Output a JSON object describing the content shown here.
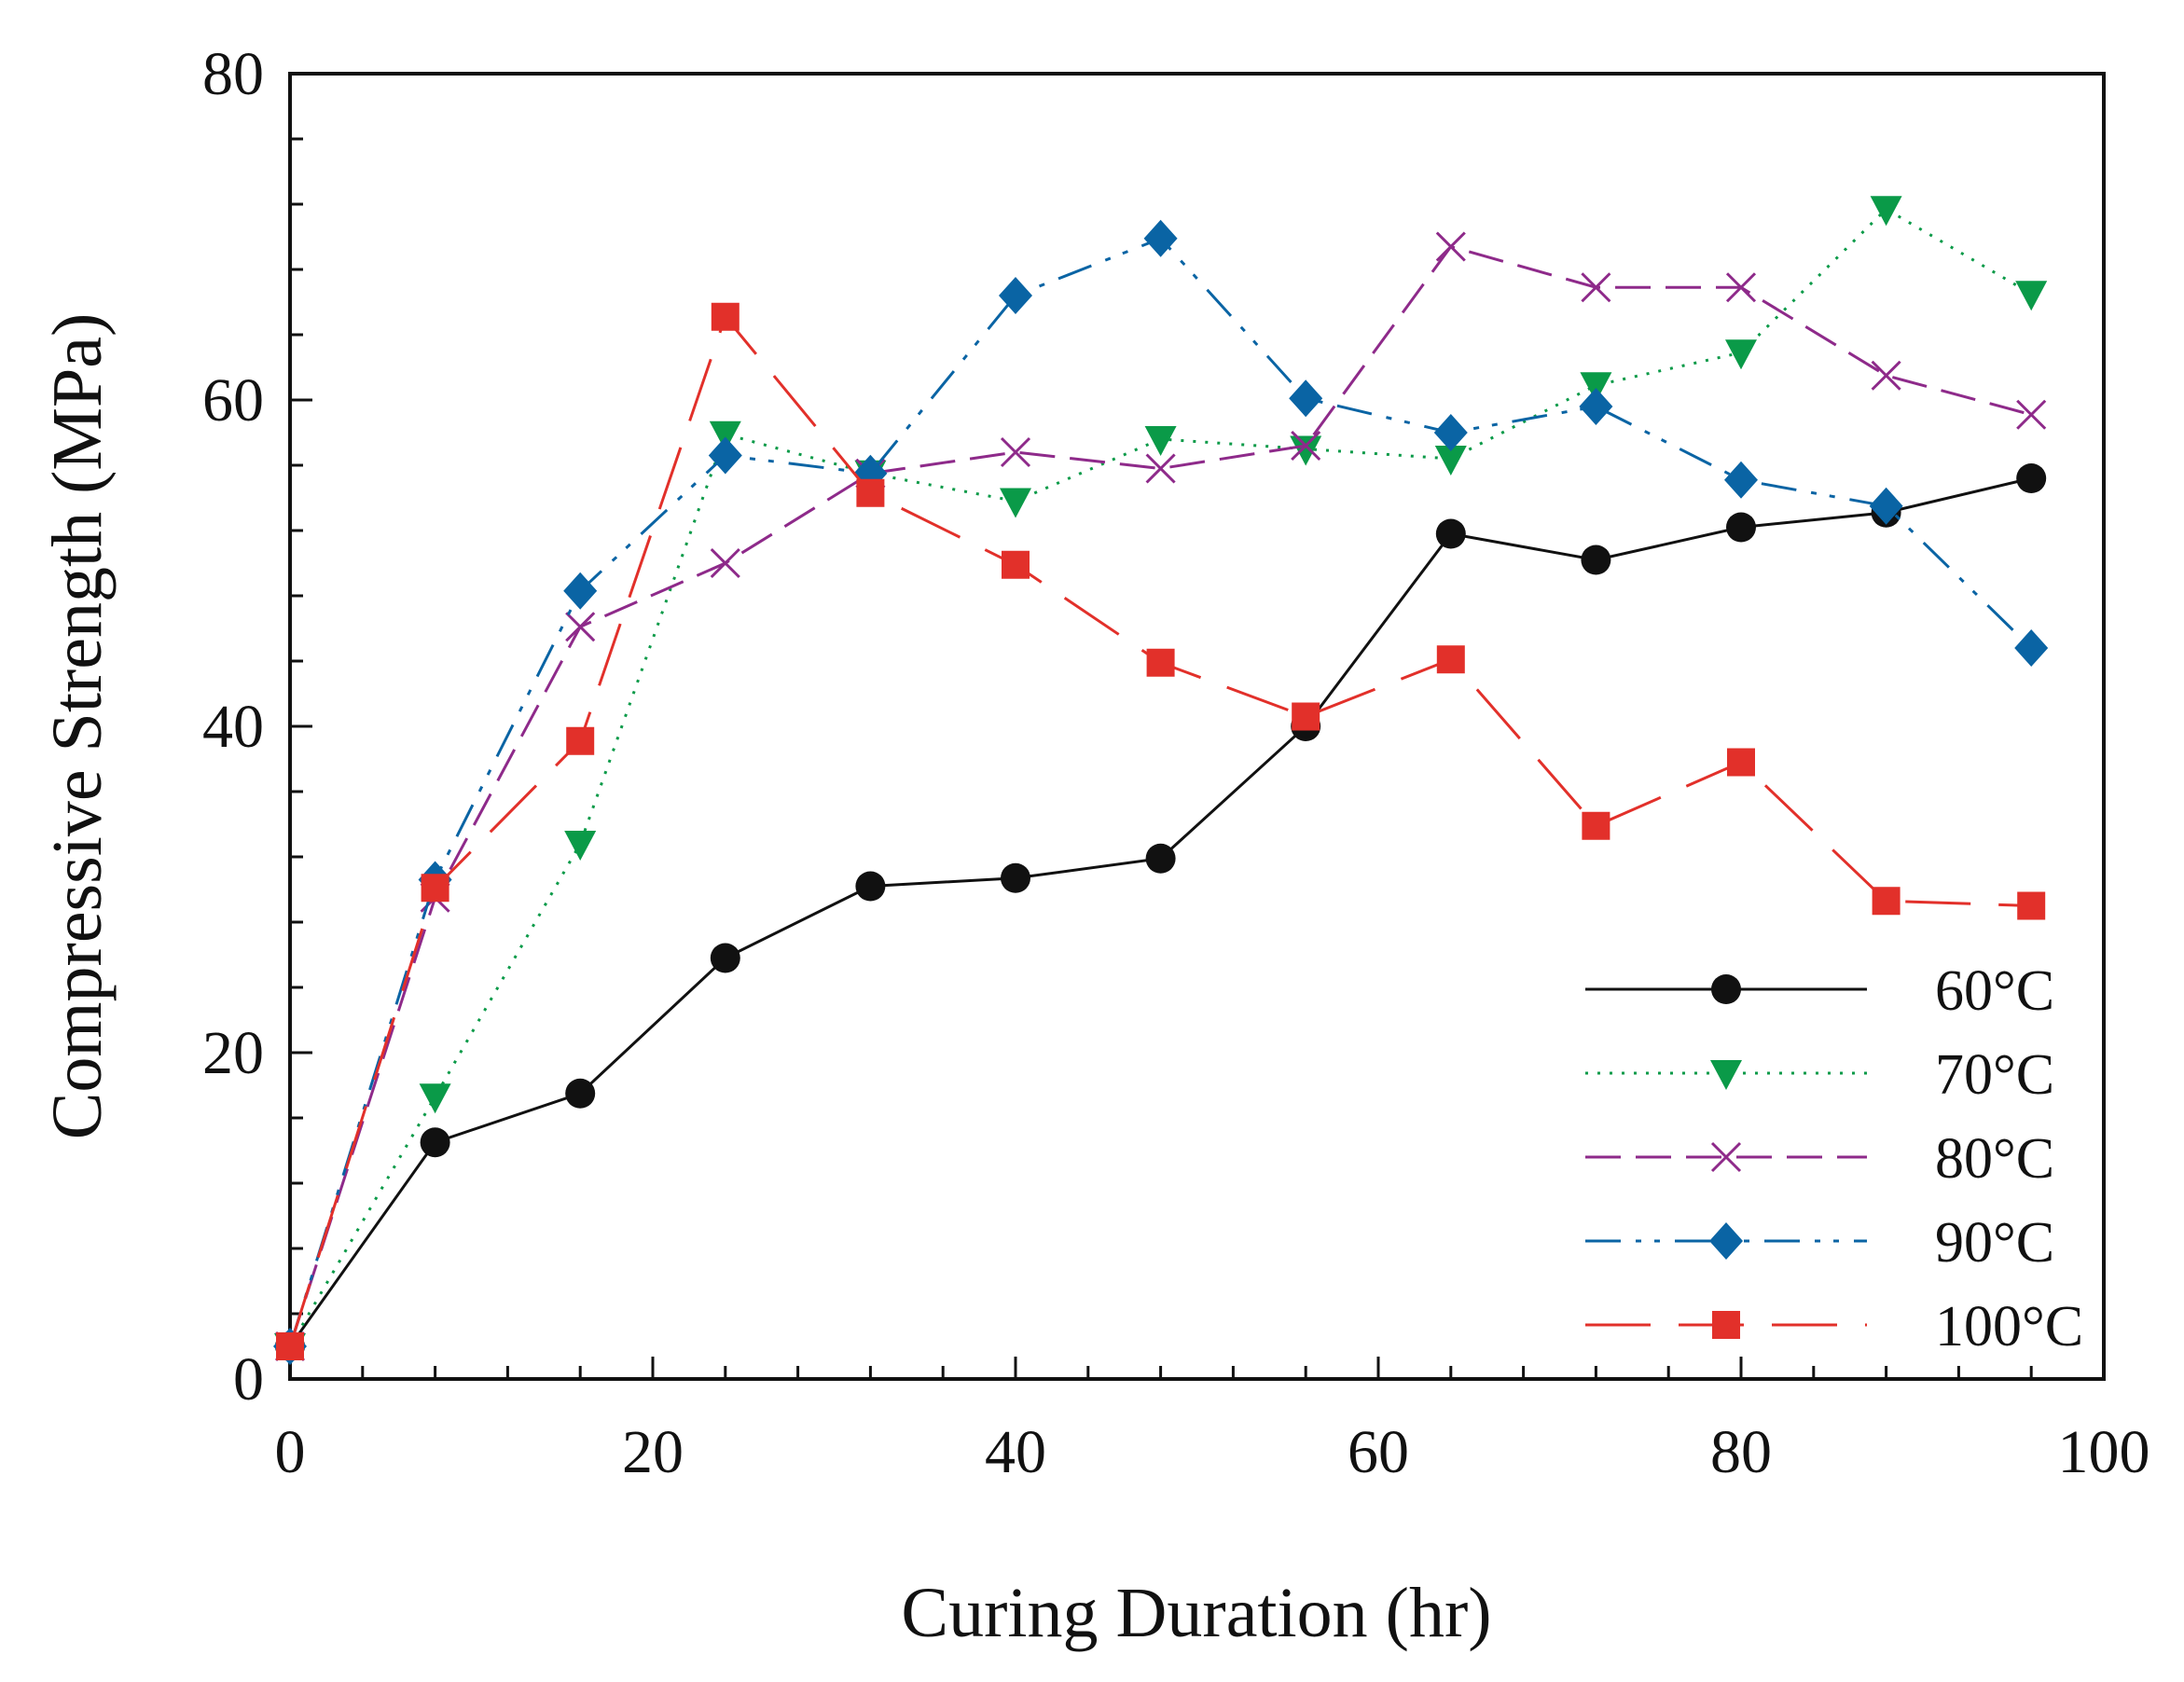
{
  "chart_data": {
    "type": "line",
    "title": "",
    "xlabel": "Curing Duration (hr)",
    "ylabel": "Compressive Strength (MPa)",
    "xlim": [
      0,
      100
    ],
    "ylim": [
      0,
      80
    ],
    "xticks": [
      0,
      20,
      40,
      60,
      80,
      100
    ],
    "yticks": [
      0,
      20,
      40,
      60,
      80
    ],
    "grid": false,
    "legend_position": "bottom-right",
    "x": [
      0,
      8,
      16,
      24,
      32,
      40,
      48,
      56,
      64,
      72,
      80,
      88,
      96
    ],
    "series": [
      {
        "name": "60°C",
        "color": "#111111",
        "marker": "circle",
        "dash": "solid",
        "values": [
          2,
          14.5,
          17.5,
          25.8,
          30.2,
          30.7,
          31.9,
          40,
          51.8,
          50.2,
          52.2,
          53.1,
          55.2
        ]
      },
      {
        "name": "70°C",
        "color": "#0a9a48",
        "marker": "triangle-down",
        "dash": "dotted",
        "values": [
          2,
          17.3,
          32.8,
          57.9,
          55.5,
          53.8,
          57.6,
          57,
          56.4,
          60.9,
          62.9,
          71.7,
          66.5
        ]
      },
      {
        "name": "80°C",
        "color": "#8e2a8a",
        "marker": "x",
        "dash": "dashed",
        "values": [
          2,
          29.5,
          46.1,
          50,
          55.5,
          56.8,
          55.8,
          57.2,
          69.4,
          66.9,
          66.9,
          61.5,
          59.1
        ]
      },
      {
        "name": "90°C",
        "color": "#0a64a4",
        "marker": "diamond",
        "dash": "dashdotdot",
        "values": [
          2,
          30.6,
          48.3,
          56.6,
          55.5,
          66.4,
          69.9,
          60.1,
          58,
          59.6,
          55.1,
          53.5,
          44.8
        ]
      },
      {
        "name": "100°C",
        "color": "#e2302a",
        "marker": "square",
        "dash": "longdash",
        "values": [
          2,
          30.1,
          39.1,
          65.1,
          54.3,
          49.9,
          43.9,
          40.6,
          44.1,
          33.9,
          37.8,
          29.3,
          29
        ]
      }
    ]
  }
}
